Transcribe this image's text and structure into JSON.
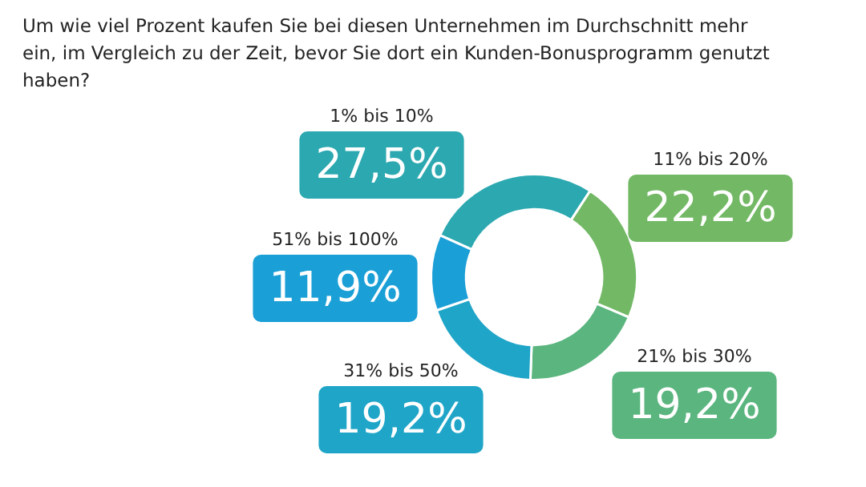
{
  "chart_data": {
    "type": "donut",
    "title": "Um wie viel Prozent kaufen Sie bei diesen Unternehmen im Durchschnitt mehr ein, im Vergleich zu der Zeit, bevor Sie dort ein Kunden-Bonusprogramm genutzt haben?",
    "categories": [
      "1% bis 10%",
      "11% bis 20%",
      "21% bis 30%",
      "31% bis 50%",
      "51% bis 100%"
    ],
    "values": [
      27.5,
      22.2,
      19.2,
      19.2,
      11.9
    ],
    "value_labels": [
      "27,5%",
      "22,2%",
      "19,2%",
      "19,2%",
      "11,9%"
    ],
    "colors": [
      "#2ba8b0",
      "#72b865",
      "#5ab57e",
      "#1fa5c8",
      "#1a9fd6"
    ],
    "legend": false
  }
}
